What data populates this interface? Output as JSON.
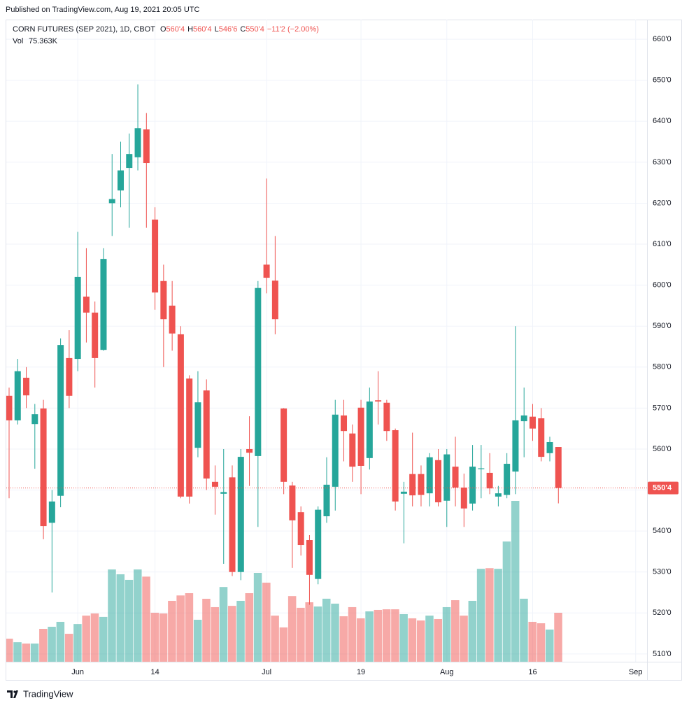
{
  "published": "Published on TradingView.com, Aug 19, 2021 20:05 UTC",
  "footer": "TradingView",
  "chart_data": {
    "type": "candlestick",
    "title": "CORN FUTURES (SEP 2021), 1D, CBOT",
    "ohlc_legend": [
      {
        "key": "O",
        "value": "560'4"
      },
      {
        "key": "H",
        "value": "560'4"
      },
      {
        "key": "L",
        "value": "546'6"
      },
      {
        "key": "C",
        "value": "550'4"
      }
    ],
    "change": "−11'2 (−2.00%)",
    "volume_label": "Vol",
    "volume_value": "75.363K",
    "last_price_label": "550'4",
    "up_color": "#26a69a",
    "down_color": "#ef5350",
    "grid": true,
    "categories": [
      null,
      null,
      null,
      null,
      null,
      null,
      null,
      null,
      "Jun",
      null,
      null,
      null,
      null,
      null,
      null,
      null,
      null,
      "14",
      null,
      null,
      null,
      null,
      null,
      null,
      null,
      null,
      null,
      null,
      null,
      null,
      "Jul",
      null,
      null,
      null,
      null,
      null,
      null,
      null,
      null,
      null,
      null,
      "19",
      null,
      null,
      null,
      null,
      null,
      null,
      null,
      null,
      null,
      "Aug",
      null,
      null,
      null,
      null,
      null,
      null,
      null,
      null,
      null,
      "16",
      null,
      null,
      null,
      null,
      null,
      null,
      null,
      null,
      null,
      null,
      null,
      "Sep"
    ],
    "open": [
      573,
      567,
      577.4,
      566.1,
      569.9,
      542,
      548.6,
      582.2,
      582,
      597.2,
      593.3,
      584.2,
      620,
      623.1,
      628.6,
      631.2,
      638,
      616,
      601,
      595,
      588,
      577.2,
      560.3,
      574.3,
      552,
      549.1,
      553.1,
      530,
      560,
      558.3,
      605,
      601.1,
      569.9,
      551.1,
      544.6,
      537.8,
      528.3,
      543.6,
      550.8,
      568.2,
      563.8,
      570.1,
      557.8,
      571.9,
      571.3,
      564.6,
      549.1,
      553.9,
      553.9,
      549.2,
      557.3,
      547.4,
      555.7,
      550.6,
      546.7,
      555.1,
      554.2,
      548.4,
      548.8,
      554.5,
      566.8,
      567.9,
      567.5,
      559,
      560.5,
      null,
      null,
      null,
      null,
      null,
      null,
      null,
      null,
      null
    ],
    "high": [
      575,
      582,
      580,
      571,
      572,
      550,
      587,
      589,
      613,
      609,
      596,
      609,
      632,
      635,
      637,
      649,
      642,
      619,
      605,
      601,
      590,
      578,
      579,
      577,
      556,
      560,
      556,
      560,
      568,
      601,
      626,
      612,
      570,
      552,
      546,
      539,
      546,
      558,
      572,
      572,
      566,
      572,
      575,
      579,
      572,
      565,
      552,
      564,
      556,
      559,
      560,
      560,
      563,
      554,
      561,
      561,
      559,
      551,
      559,
      590,
      575,
      571,
      570,
      563,
      560.5,
      null,
      null,
      null,
      null,
      null,
      null,
      null,
      null,
      null
    ],
    "low": [
      548,
      566,
      570,
      555.2,
      538,
      525,
      545.8,
      570,
      579,
      586,
      575,
      584,
      612,
      619,
      614,
      628,
      614,
      594,
      580,
      584,
      548,
      546.7,
      558,
      550,
      544,
      532,
      529,
      528,
      551,
      541,
      598,
      588,
      549,
      531,
      534,
      522,
      527,
      542,
      545,
      557,
      552,
      549,
      555,
      566,
      562,
      545,
      537,
      546,
      546,
      546,
      546,
      541,
      546,
      541,
      545,
      548,
      549,
      546,
      548,
      549,
      558,
      562,
      557,
      557,
      546.75,
      null,
      null,
      null,
      null,
      null,
      null,
      null,
      null,
      null
    ],
    "close": [
      567,
      579,
      573.1,
      568.5,
      541.2,
      547.2,
      585.4,
      573,
      602,
      593.3,
      582.2,
      606.4,
      621,
      628,
      632,
      638.3,
      629.8,
      598.2,
      591.7,
      588.2,
      548.4,
      548.4,
      571.4,
      552.8,
      550.8,
      549.5,
      530,
      558.1,
      559.1,
      599.3,
      601.8,
      591.7,
      552,
      542.6,
      536.6,
      529.3,
      545.2,
      551.3,
      568.4,
      564.4,
      555.7,
      555.9,
      571.6,
      571.6,
      564.4,
      547.2,
      549.6,
      548.7,
      548.8,
      558,
      547,
      558.7,
      550.6,
      545.5,
      555.7,
      555.3,
      550.4,
      549.2,
      556.4,
      567,
      568.2,
      565,
      558.1,
      561.7,
      550.5,
      null,
      null,
      null,
      null,
      null,
      null,
      null,
      null,
      null
    ],
    "volume": [
      35500,
      30000,
      28000,
      28000,
      50600,
      53800,
      61400,
      43000,
      58000,
      71000,
      74300,
      69000,
      142000,
      134600,
      126000,
      142000,
      131000,
      75400,
      74300,
      93700,
      102000,
      105500,
      64600,
      96900,
      84000,
      115000,
      86000,
      93700,
      105500,
      136700,
      121700,
      71000,
      52800,
      101000,
      83000,
      91500,
      85000,
      97000,
      89400,
      70000,
      84000,
      66800,
      77500,
      79700,
      80700,
      80700,
      73200,
      66800,
      63500,
      71000,
      65700,
      84000,
      94700,
      71000,
      93700,
      143000,
      144000,
      143000,
      185000,
      247600,
      97000,
      61400,
      59200,
      49500,
      75363,
      null,
      null,
      null,
      null,
      null,
      null,
      null,
      null,
      null
    ],
    "ylim": [
      508.1,
      664.8
    ],
    "yticks": [
      {
        "value": 510,
        "label": "510'0"
      },
      {
        "value": 520,
        "label": "520'0"
      },
      {
        "value": 530,
        "label": "530'0"
      },
      {
        "value": 540,
        "label": "540'0"
      },
      {
        "value": 550,
        "label": "550'0"
      },
      {
        "value": 560,
        "label": "560'0"
      },
      {
        "value": 570,
        "label": "570'0"
      },
      {
        "value": 580,
        "label": "580'0"
      },
      {
        "value": 590,
        "label": "590'0"
      },
      {
        "value": 600,
        "label": "600'0"
      },
      {
        "value": 610,
        "label": "610'0"
      },
      {
        "value": 620,
        "label": "620'0"
      },
      {
        "value": 630,
        "label": "630'0"
      },
      {
        "value": 640,
        "label": "640'0"
      },
      {
        "value": 650,
        "label": "650'0"
      },
      {
        "value": 660,
        "label": "660'0"
      }
    ]
  }
}
